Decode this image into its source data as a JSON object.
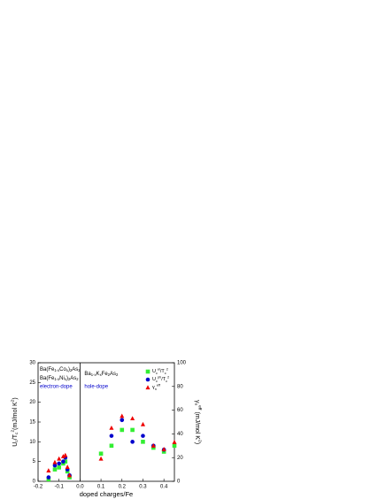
{
  "chart_data": {
    "type": "scatter",
    "xlabel": "doped charges/Fe",
    "ylabel": "U_c/T_c^2(mJ/mol K^2)",
    "y2label": "γ_n^{eff} (mJ/mol K^2)",
    "xlim": [
      -0.2,
      0.45
    ],
    "xticks": [
      -0.2,
      -0.1,
      {
        "value": 0,
        "label": "0.0"
      },
      0.1,
      0.2,
      0.3,
      0.4
    ],
    "ylim": [
      0,
      30
    ],
    "yticks": [
      0,
      5,
      10,
      15,
      20,
      25,
      30
    ],
    "y2lim": [
      0,
      100
    ],
    "y2ticks": [
      0,
      20,
      40,
      60,
      80,
      100
    ],
    "legend": "upper right",
    "annotations": [
      {
        "text": "Ba(Fe_{1-x}Co_x)_2As_2",
        "color": "#000000"
      },
      {
        "text": "Ba(Fe_{1-x}Ni_x)_2As_2",
        "color": "#000000"
      },
      {
        "text": "electron-dope",
        "color": "#0000cc"
      },
      {
        "text": "Ba_{1-x}K_xFe_2As_2",
        "color": "#000000"
      },
      {
        "text": "hole-dope",
        "color": "#0000cc"
      }
    ],
    "series": [
      {
        "name": "U_c^{el}/T_c^2",
        "color": "#33ee33",
        "marker": "square",
        "x": [
          -0.15,
          -0.12,
          -0.1,
          -0.08,
          -0.07,
          -0.06,
          -0.05,
          0.1,
          0.15,
          0.2,
          0.25,
          0.3,
          0.35,
          0.4,
          0.45
        ],
        "values": [
          0.5,
          3,
          3.5,
          4.5,
          5,
          2.5,
          1,
          7,
          9,
          13,
          13,
          10,
          8.5,
          7.5,
          9
        ]
      },
      {
        "name": "U_c^{ph}/T_c^2",
        "color": "#0000cc",
        "marker": "circle",
        "x": [
          -0.15,
          -0.12,
          -0.1,
          -0.08,
          -0.07,
          -0.06,
          -0.05,
          0.15,
          0.2,
          0.25,
          0.3,
          0.35,
          0.4
        ],
        "values": [
          1,
          4,
          4.5,
          5,
          6,
          3,
          1.5,
          11.5,
          15.5,
          10,
          11.5,
          9,
          8
        ]
      },
      {
        "name": "γ_n^{eff}",
        "color": "#ee0000",
        "marker": "triangle",
        "axis": "y2",
        "x": [
          -0.15,
          -0.12,
          -0.1,
          -0.08,
          -0.07,
          -0.06,
          -0.05,
          0.1,
          0.15,
          0.2,
          0.25,
          0.3,
          0.35,
          0.4,
          0.45
        ],
        "values": [
          9,
          16,
          19,
          21,
          22,
          12,
          5,
          19,
          45,
          55,
          53,
          48,
          30,
          27,
          33
        ]
      }
    ]
  }
}
